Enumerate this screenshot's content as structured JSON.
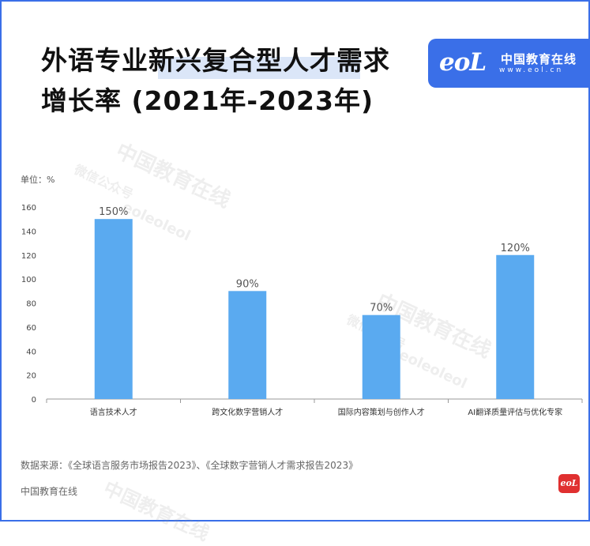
{
  "title_line1": "外语专业新兴复合型人才需求",
  "title_line2": "增长率 (2021年-2023年)",
  "logo": {
    "mark": "eoL",
    "name": "中国教育在线",
    "url": "www.eol.cn"
  },
  "watermark": {
    "brand": "中国教育在线",
    "account": "微信公众号",
    "handle": "eoleoleol"
  },
  "unit_label": "单位：%",
  "chart_data": {
    "type": "bar",
    "categories": [
      "语言技术人才",
      "跨文化数字营销人才",
      "国际内容策划与创作人才",
      "AI翻译质量评估与优化专家"
    ],
    "values": [
      150,
      90,
      70,
      120
    ],
    "value_labels": [
      "150%",
      "90%",
      "70%",
      "120%"
    ],
    "ylim": [
      0,
      160
    ],
    "yticks": [
      0,
      20,
      40,
      60,
      80,
      100,
      120,
      140,
      160
    ],
    "ylabel": "单位：%",
    "grid": false,
    "bar_color": "#5aaaf0"
  },
  "source": "数据来源：《全球语言服务市场报告2023》、《全球数字营销人才需求报告2023》",
  "footer": "中国教育在线",
  "badge_text": "eoL"
}
